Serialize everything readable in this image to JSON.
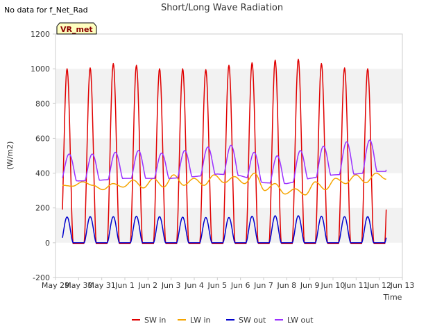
{
  "header": {
    "title": "Short/Long Wave Radiation",
    "no_data_note": "No data for f_Net_Rad",
    "badge": "VR_met"
  },
  "colors": {
    "sw_in": "#e00000",
    "lw_in": "#f5a400",
    "sw_out": "#0000cc",
    "lw_out": "#9b30ff",
    "band": "#f2f2f2",
    "axis": "#cccccc",
    "badge_bg": "#ffffc0"
  },
  "chart_data": {
    "type": "line",
    "title": "Short/Long Wave Radiation",
    "xlabel": "Time",
    "ylabel": "(W/m2)",
    "ylim": [
      -200,
      1200
    ],
    "xlim": [
      0,
      15
    ],
    "yticks": [
      -200,
      0,
      200,
      400,
      600,
      800,
      1000,
      1200
    ],
    "xticks": [
      {
        "pos": 0,
        "label": "May 29"
      },
      {
        "pos": 1,
        "label": "May 30"
      },
      {
        "pos": 2,
        "label": "May 31"
      },
      {
        "pos": 3,
        "label": "Jun 1"
      },
      {
        "pos": 4,
        "label": "Jun 2"
      },
      {
        "pos": 5,
        "label": "Jun 3"
      },
      {
        "pos": 6,
        "label": "Jun 4"
      },
      {
        "pos": 7,
        "label": "Jun 5"
      },
      {
        "pos": 8,
        "label": "Jun 6"
      },
      {
        "pos": 9,
        "label": "Jun 7"
      },
      {
        "pos": 10,
        "label": "Jun 8"
      },
      {
        "pos": 11,
        "label": "Jun 9"
      },
      {
        "pos": 12,
        "label": "Jun 10"
      },
      {
        "pos": 13,
        "label": "Jun 11"
      },
      {
        "pos": 14,
        "label": "Jun 12"
      },
      {
        "pos": 15,
        "label": "Jun 13"
      }
    ],
    "x_range": [
      0.3,
      14.3
    ],
    "grid": "horizontal alternating bands",
    "legend_position": "bottom",
    "series": [
      {
        "name": "SW in",
        "kind": "solar",
        "night": -5,
        "daily_peaks": [
          1000,
          1005,
          1030,
          1020,
          1000,
          1000,
          995,
          1020,
          1035,
          1050,
          1055,
          1030,
          1005,
          1000
        ]
      },
      {
        "name": "LW in",
        "kind": "smooth",
        "values": [
          330,
          325,
          350,
          330,
          305,
          340,
          320,
          360,
          315,
          370,
          320,
          390,
          330,
          370,
          330,
          390,
          345,
          380,
          340,
          400,
          300,
          340,
          280,
          310,
          275,
          350,
          305,
          370,
          340,
          390,
          345,
          400,
          365
        ]
      },
      {
        "name": "SW out",
        "kind": "solar",
        "night": 0,
        "daily_peaks": [
          148,
          150,
          150,
          152,
          150,
          147,
          145,
          145,
          152,
          155,
          155,
          152,
          150,
          150
        ]
      },
      {
        "name": "LW out",
        "kind": "diurnal",
        "night_lows": [
          370,
          355,
          360,
          370,
          370,
          370,
          380,
          395,
          385,
          345,
          340,
          370,
          390,
          395,
          410
        ],
        "daily_peaks": [
          510,
          510,
          520,
          530,
          515,
          530,
          550,
          560,
          520,
          500,
          530,
          555,
          580,
          590
        ]
      }
    ]
  }
}
